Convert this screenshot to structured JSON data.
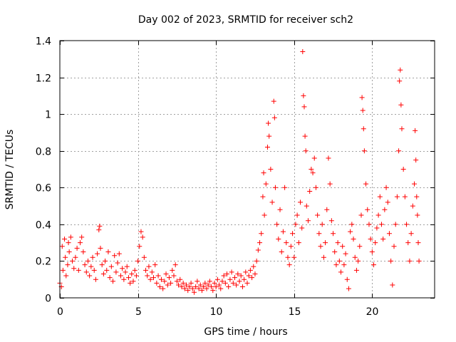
{
  "chart_data": {
    "type": "scatter",
    "title": "Day 002 of 2023, SRMTID for receiver sch2",
    "xlabel": "GPS time / hours",
    "ylabel": "SRMTID / TECUs",
    "xlim": [
      0,
      24
    ],
    "ylim": [
      0,
      1.4
    ],
    "xticks": [
      0,
      5,
      10,
      15,
      20
    ],
    "xtick_labels": [
      "0",
      "5",
      "10",
      "15",
      "20"
    ],
    "yticks": [
      0,
      0.2,
      0.4,
      0.6,
      0.8,
      1,
      1.2,
      1.4
    ],
    "ytick_labels": [
      "0",
      "0.2",
      "0.4",
      "0.6",
      "0.8",
      "1",
      "1.2",
      "1.4"
    ],
    "grid": true,
    "marker": "+",
    "marker_color": "#ff0000",
    "series": [
      {
        "name": "sch2",
        "points": [
          [
            0.0,
            0.08
          ],
          [
            0.1,
            0.06
          ],
          [
            0.15,
            0.28
          ],
          [
            0.2,
            0.15
          ],
          [
            0.3,
            0.32
          ],
          [
            0.35,
            0.22
          ],
          [
            0.4,
            0.12
          ],
          [
            0.5,
            0.18
          ],
          [
            0.55,
            0.3
          ],
          [
            0.6,
            0.25
          ],
          [
            0.7,
            0.33
          ],
          [
            0.8,
            0.2
          ],
          [
            0.9,
            0.16
          ],
          [
            1.0,
            0.22
          ],
          [
            1.1,
            0.27
          ],
          [
            1.2,
            0.15
          ],
          [
            1.3,
            0.3
          ],
          [
            1.4,
            0.33
          ],
          [
            1.5,
            0.25
          ],
          [
            1.6,
            0.18
          ],
          [
            1.7,
            0.14
          ],
          [
            1.8,
            0.2
          ],
          [
            1.9,
            0.12
          ],
          [
            2.0,
            0.17
          ],
          [
            2.1,
            0.22
          ],
          [
            2.2,
            0.15
          ],
          [
            2.3,
            0.1
          ],
          [
            2.4,
            0.24
          ],
          [
            2.5,
            0.37
          ],
          [
            2.55,
            0.39
          ],
          [
            2.6,
            0.27
          ],
          [
            2.7,
            0.18
          ],
          [
            2.8,
            0.13
          ],
          [
            2.9,
            0.2
          ],
          [
            3.0,
            0.15
          ],
          [
            3.1,
            0.25
          ],
          [
            3.2,
            0.11
          ],
          [
            3.3,
            0.17
          ],
          [
            3.4,
            0.09
          ],
          [
            3.5,
            0.23
          ],
          [
            3.6,
            0.14
          ],
          [
            3.7,
            0.19
          ],
          [
            3.8,
            0.24
          ],
          [
            3.9,
            0.12
          ],
          [
            4.0,
            0.16
          ],
          [
            4.1,
            0.1
          ],
          [
            4.2,
            0.14
          ],
          [
            4.3,
            0.17
          ],
          [
            4.4,
            0.11
          ],
          [
            4.5,
            0.08
          ],
          [
            4.6,
            0.13
          ],
          [
            4.7,
            0.09
          ],
          [
            4.8,
            0.15
          ],
          [
            4.9,
            0.12
          ],
          [
            5.0,
            0.2
          ],
          [
            5.1,
            0.28
          ],
          [
            5.2,
            0.36
          ],
          [
            5.3,
            0.33
          ],
          [
            5.4,
            0.22
          ],
          [
            5.5,
            0.15
          ],
          [
            5.6,
            0.12
          ],
          [
            5.7,
            0.17
          ],
          [
            5.8,
            0.1
          ],
          [
            5.9,
            0.14
          ],
          [
            6.0,
            0.11
          ],
          [
            6.1,
            0.18
          ],
          [
            6.2,
            0.08
          ],
          [
            6.3,
            0.12
          ],
          [
            6.4,
            0.06
          ],
          [
            6.5,
            0.1
          ],
          [
            6.6,
            0.05
          ],
          [
            6.7,
            0.09
          ],
          [
            6.8,
            0.13
          ],
          [
            6.9,
            0.07
          ],
          [
            7.0,
            0.11
          ],
          [
            7.1,
            0.08
          ],
          [
            7.2,
            0.15
          ],
          [
            7.3,
            0.12
          ],
          [
            7.4,
            0.18
          ],
          [
            7.5,
            0.09
          ],
          [
            7.6,
            0.07
          ],
          [
            7.7,
            0.1
          ],
          [
            7.8,
            0.06
          ],
          [
            7.9,
            0.08
          ],
          [
            8.0,
            0.05
          ],
          [
            8.1,
            0.07
          ],
          [
            8.2,
            0.04
          ],
          [
            8.3,
            0.06
          ],
          [
            8.4,
            0.08
          ],
          [
            8.5,
            0.05
          ],
          [
            8.6,
            0.03
          ],
          [
            8.7,
            0.06
          ],
          [
            8.8,
            0.09
          ],
          [
            8.9,
            0.05
          ],
          [
            9.0,
            0.07
          ],
          [
            9.1,
            0.04
          ],
          [
            9.2,
            0.06
          ],
          [
            9.3,
            0.08
          ],
          [
            9.4,
            0.05
          ],
          [
            9.5,
            0.07
          ],
          [
            9.6,
            0.09
          ],
          [
            9.7,
            0.06
          ],
          [
            9.8,
            0.04
          ],
          [
            9.9,
            0.08
          ],
          [
            10.0,
            0.06
          ],
          [
            10.1,
            0.1
          ],
          [
            10.2,
            0.07
          ],
          [
            10.3,
            0.05
          ],
          [
            10.4,
            0.09
          ],
          [
            10.5,
            0.12
          ],
          [
            10.6,
            0.08
          ],
          [
            10.7,
            0.13
          ],
          [
            10.8,
            0.06
          ],
          [
            10.9,
            0.1
          ],
          [
            11.0,
            0.14
          ],
          [
            11.1,
            0.08
          ],
          [
            11.2,
            0.11
          ],
          [
            11.3,
            0.07
          ],
          [
            11.4,
            0.13
          ],
          [
            11.5,
            0.09
          ],
          [
            11.6,
            0.12
          ],
          [
            11.7,
            0.06
          ],
          [
            11.8,
            0.1
          ],
          [
            11.9,
            0.14
          ],
          [
            12.0,
            0.08
          ],
          [
            12.1,
            0.12
          ],
          [
            12.2,
            0.15
          ],
          [
            12.3,
            0.11
          ],
          [
            12.4,
            0.17
          ],
          [
            12.5,
            0.13
          ],
          [
            12.6,
            0.2
          ],
          [
            12.7,
            0.26
          ],
          [
            12.8,
            0.3
          ],
          [
            12.9,
            0.35
          ],
          [
            13.0,
            0.55
          ],
          [
            13.05,
            0.68
          ],
          [
            13.1,
            0.45
          ],
          [
            13.2,
            0.62
          ],
          [
            13.3,
            0.82
          ],
          [
            13.35,
            0.95
          ],
          [
            13.4,
            0.88
          ],
          [
            13.5,
            0.7
          ],
          [
            13.6,
            0.52
          ],
          [
            13.7,
            1.07
          ],
          [
            13.75,
            0.98
          ],
          [
            13.8,
            0.6
          ],
          [
            13.9,
            0.4
          ],
          [
            14.0,
            0.32
          ],
          [
            14.1,
            0.48
          ],
          [
            14.2,
            0.25
          ],
          [
            14.3,
            0.36
          ],
          [
            14.4,
            0.6
          ],
          [
            14.5,
            0.3
          ],
          [
            14.6,
            0.22
          ],
          [
            14.7,
            0.18
          ],
          [
            14.8,
            0.28
          ],
          [
            14.9,
            0.35
          ],
          [
            15.0,
            0.22
          ],
          [
            15.1,
            0.4
          ],
          [
            15.2,
            0.45
          ],
          [
            15.3,
            0.3
          ],
          [
            15.4,
            0.52
          ],
          [
            15.5,
            0.38
          ],
          [
            15.55,
            1.34
          ],
          [
            15.6,
            1.1
          ],
          [
            15.65,
            1.04
          ],
          [
            15.7,
            0.88
          ],
          [
            15.75,
            0.8
          ],
          [
            15.8,
            0.5
          ],
          [
            15.9,
            0.42
          ],
          [
            16.0,
            0.58
          ],
          [
            16.1,
            0.7
          ],
          [
            16.2,
            0.68
          ],
          [
            16.3,
            0.76
          ],
          [
            16.4,
            0.6
          ],
          [
            16.5,
            0.45
          ],
          [
            16.6,
            0.35
          ],
          [
            16.7,
            0.28
          ],
          [
            16.8,
            0.4
          ],
          [
            16.9,
            0.22
          ],
          [
            17.0,
            0.3
          ],
          [
            17.1,
            0.48
          ],
          [
            17.2,
            0.76
          ],
          [
            17.3,
            0.62
          ],
          [
            17.4,
            0.42
          ],
          [
            17.5,
            0.35
          ],
          [
            17.6,
            0.25
          ],
          [
            17.7,
            0.18
          ],
          [
            17.8,
            0.3
          ],
          [
            17.9,
            0.2
          ],
          [
            18.0,
            0.14
          ],
          [
            18.1,
            0.28
          ],
          [
            18.2,
            0.18
          ],
          [
            18.3,
            0.24
          ],
          [
            18.4,
            0.1
          ],
          [
            18.5,
            0.05
          ],
          [
            18.6,
            0.36
          ],
          [
            18.7,
            0.4
          ],
          [
            18.8,
            0.32
          ],
          [
            18.9,
            0.22
          ],
          [
            19.0,
            0.15
          ],
          [
            19.1,
            0.2
          ],
          [
            19.2,
            0.28
          ],
          [
            19.3,
            0.45
          ],
          [
            19.35,
            1.09
          ],
          [
            19.4,
            1.02
          ],
          [
            19.45,
            0.92
          ],
          [
            19.5,
            0.8
          ],
          [
            19.6,
            0.62
          ],
          [
            19.7,
            0.48
          ],
          [
            19.8,
            0.4
          ],
          [
            19.9,
            0.32
          ],
          [
            20.0,
            0.25
          ],
          [
            20.1,
            0.18
          ],
          [
            20.2,
            0.3
          ],
          [
            20.3,
            0.38
          ],
          [
            20.4,
            0.45
          ],
          [
            20.5,
            0.55
          ],
          [
            20.6,
            0.4
          ],
          [
            20.7,
            0.32
          ],
          [
            20.8,
            0.48
          ],
          [
            20.9,
            0.6
          ],
          [
            21.0,
            0.52
          ],
          [
            21.1,
            0.35
          ],
          [
            21.2,
            0.2
          ],
          [
            21.3,
            0.07
          ],
          [
            21.4,
            0.28
          ],
          [
            21.5,
            0.4
          ],
          [
            21.6,
            0.55
          ],
          [
            21.7,
            0.8
          ],
          [
            21.75,
            1.18
          ],
          [
            21.8,
            1.24
          ],
          [
            21.85,
            1.05
          ],
          [
            21.9,
            0.92
          ],
          [
            22.0,
            0.7
          ],
          [
            22.1,
            0.55
          ],
          [
            22.2,
            0.4
          ],
          [
            22.3,
            0.3
          ],
          [
            22.4,
            0.2
          ],
          [
            22.5,
            0.35
          ],
          [
            22.6,
            0.5
          ],
          [
            22.7,
            0.62
          ],
          [
            22.75,
            0.91
          ],
          [
            22.8,
            0.75
          ],
          [
            22.85,
            0.55
          ],
          [
            22.9,
            0.45
          ],
          [
            22.95,
            0.3
          ],
          [
            23.0,
            0.2
          ]
        ]
      }
    ]
  }
}
